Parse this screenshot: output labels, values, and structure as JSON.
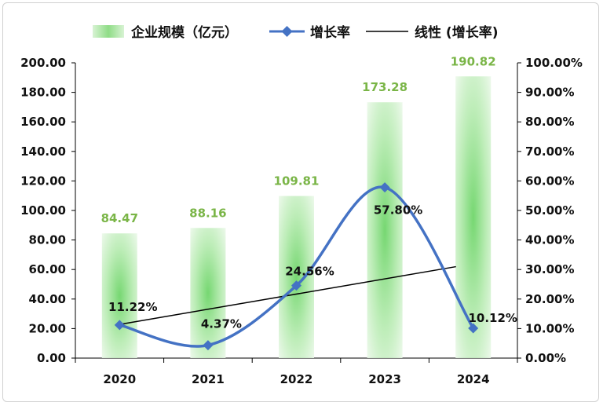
{
  "chart_data": {
    "type": "bar",
    "categories": [
      "2020",
      "2021",
      "2022",
      "2023",
      "2024"
    ],
    "series": [
      {
        "name": "企业规模（亿元）",
        "kind": "bar",
        "axis": "left",
        "values": [
          84.47,
          88.16,
          109.81,
          173.28,
          190.82
        ],
        "labels": [
          "84.47",
          "88.16",
          "109.81",
          "173.28",
          "190.82"
        ]
      },
      {
        "name": "增长率",
        "kind": "line",
        "axis": "right",
        "values": [
          11.22,
          4.37,
          24.56,
          57.8,
          10.12
        ],
        "labels": [
          "11.22%",
          "4.37%",
          "24.56%",
          "57.80%",
          "10.12%"
        ]
      },
      {
        "name": "线性 (增长率)",
        "kind": "trendline",
        "axis": "right",
        "start": 11.4,
        "end": 32.0
      }
    ],
    "y_left": {
      "min": 0,
      "max": 200,
      "step": 20,
      "tick_labels": [
        "0.00",
        "20.00",
        "40.00",
        "60.00",
        "80.00",
        "100.00",
        "120.00",
        "140.00",
        "160.00",
        "180.00",
        "200.00"
      ]
    },
    "y_right": {
      "min": 0,
      "max": 100,
      "step": 10,
      "tick_labels": [
        "0.00%",
        "10.00%",
        "20.00%",
        "30.00%",
        "40.00%",
        "50.00%",
        "60.00%",
        "70.00%",
        "80.00%",
        "90.00%",
        "100.00%"
      ]
    },
    "legend": {
      "position": "top",
      "items": [
        "企业规模（亿元）",
        "增长率",
        "线性 (增长率)"
      ]
    },
    "colors": {
      "bar": "#8fdc86",
      "bar_label": "#7ab547",
      "line": "#4472c4",
      "trend": "#000000",
      "axis": "#000000"
    }
  }
}
